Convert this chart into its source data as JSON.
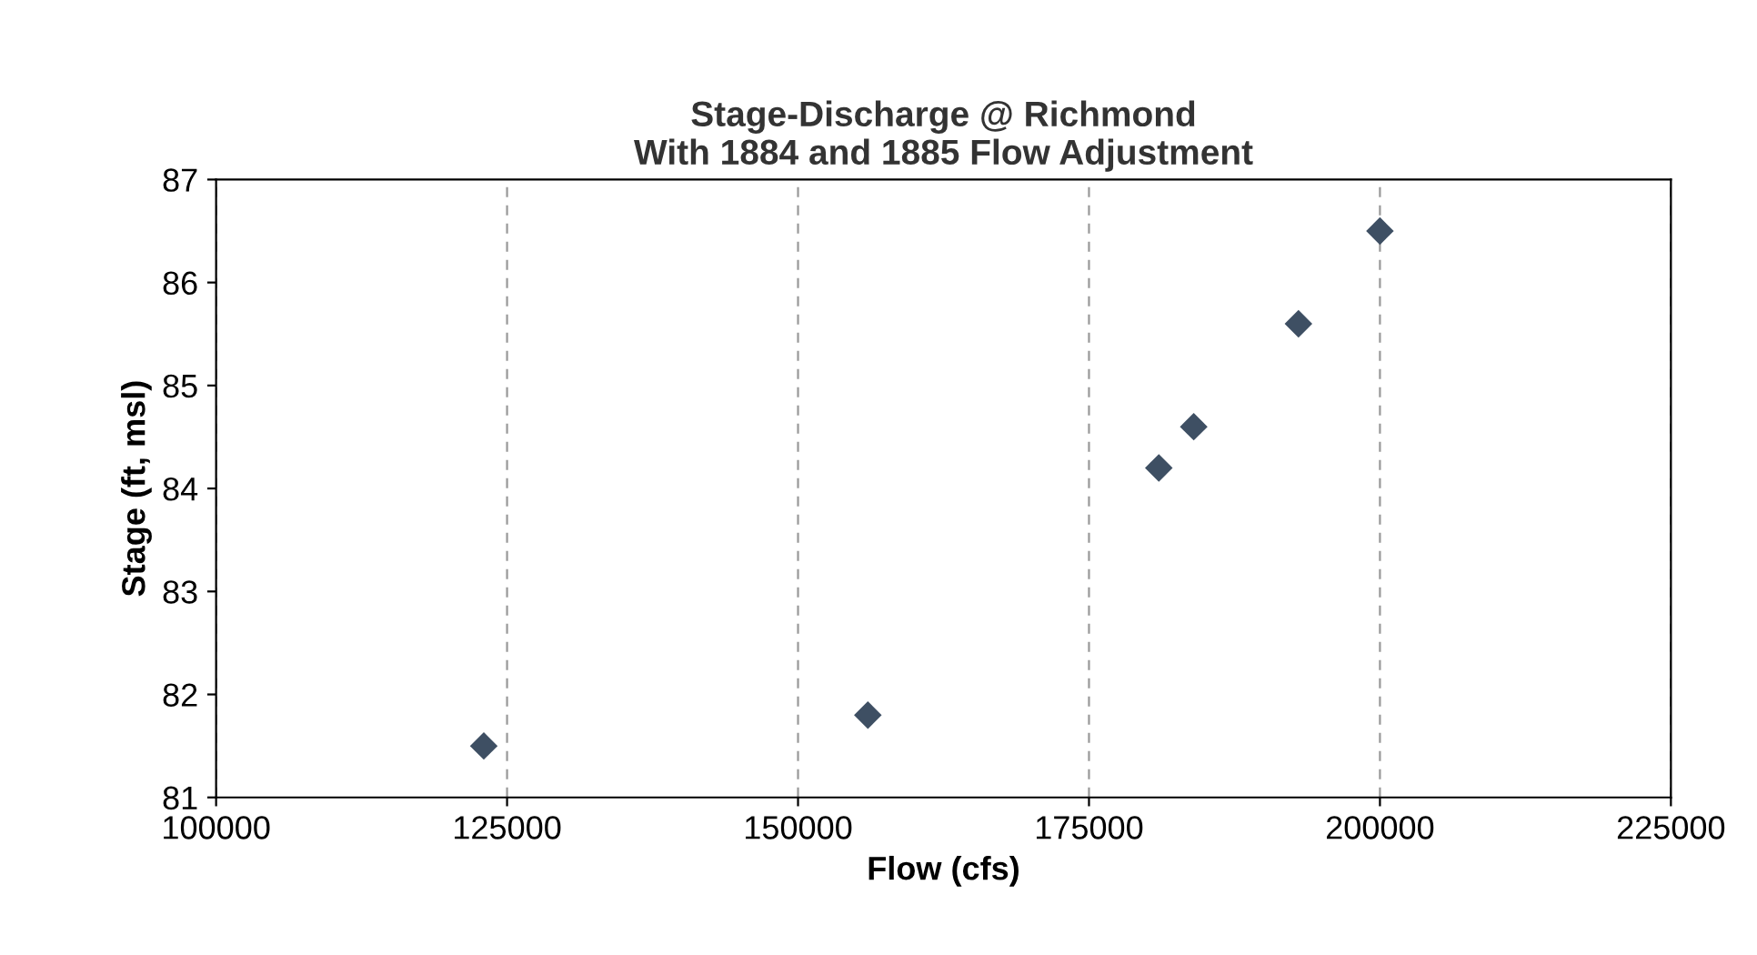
{
  "chart_data": {
    "type": "scatter",
    "title": "Stage-Discharge @ Richmond\nWith 1884 and 1885 Flow Adjustment",
    "xlabel": "Flow (cfs)",
    "ylabel": "Stage (ft, msl)",
    "x": [
      123000,
      156000,
      181000,
      184000,
      193000,
      200000
    ],
    "values": [
      81.5,
      81.8,
      84.2,
      84.6,
      85.6,
      86.5
    ],
    "color": "#3e4f63",
    "marker": "diamond",
    "xlim": [
      100000,
      225000
    ],
    "xticks": [
      100000,
      125000,
      150000,
      175000,
      200000,
      225000
    ],
    "ylim": [
      81,
      87
    ],
    "yticks": [
      81,
      82,
      83,
      84,
      85,
      86,
      87
    ],
    "grid": "x"
  }
}
